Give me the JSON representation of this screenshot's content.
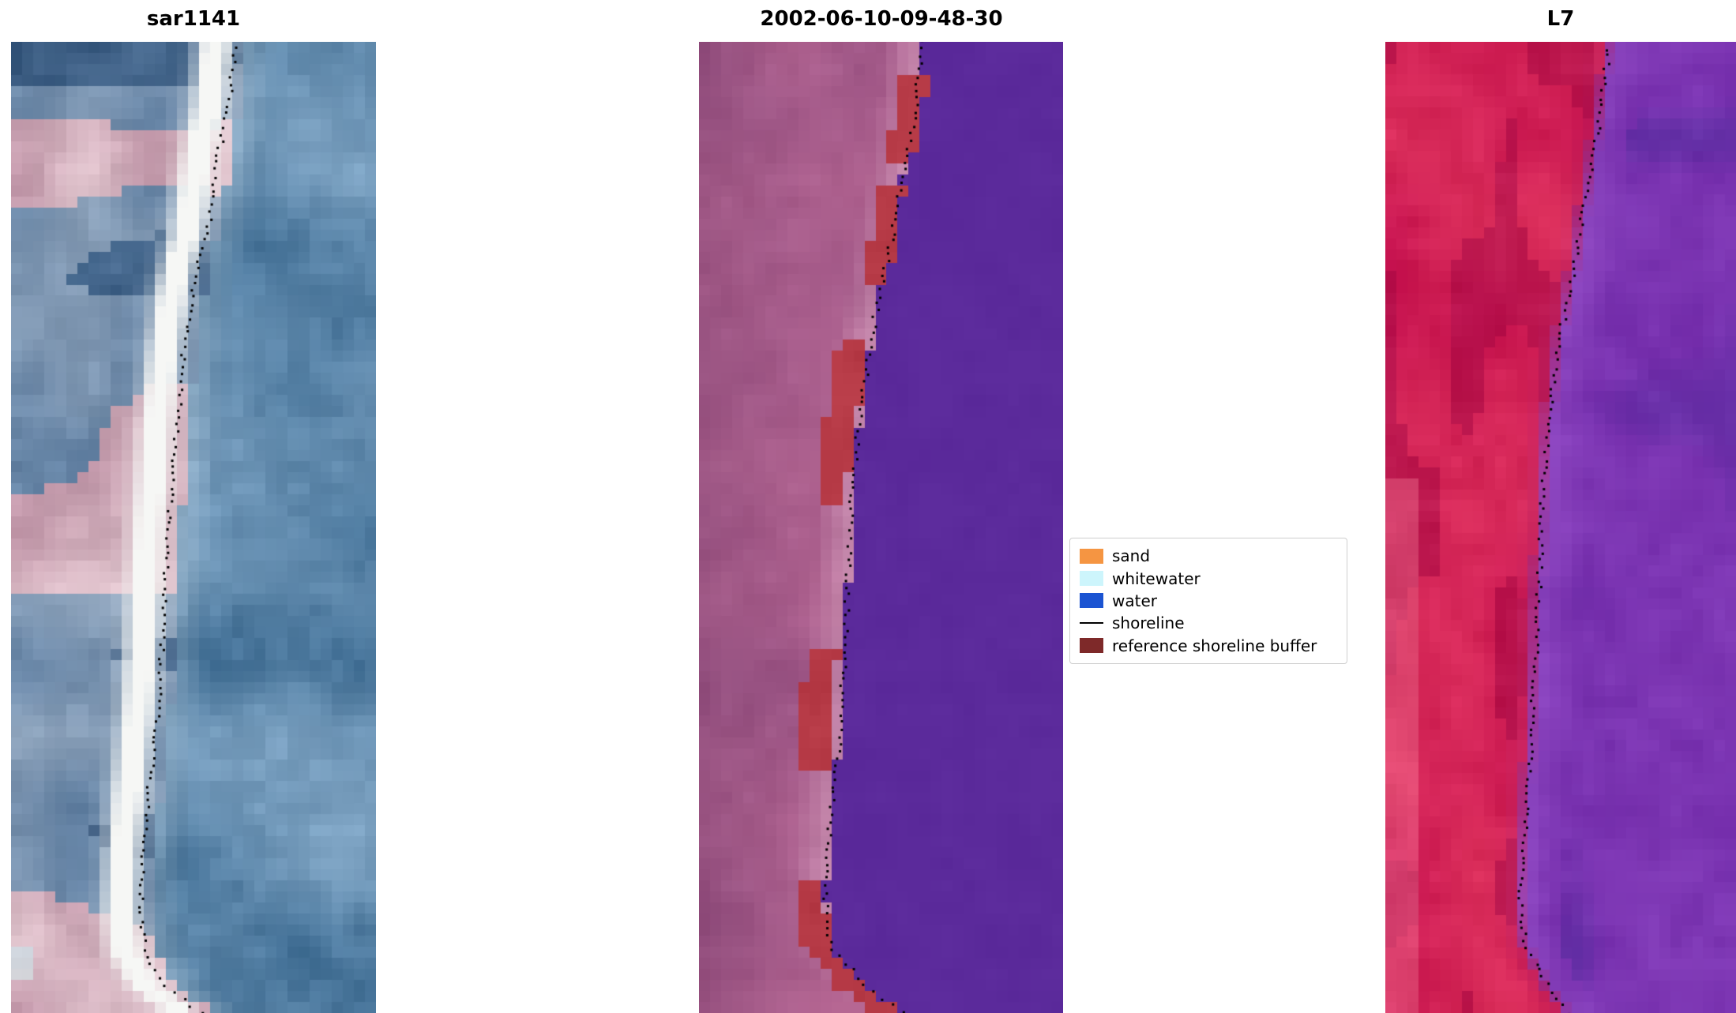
{
  "figure": {
    "background": "#ffffff"
  },
  "chart_data": {
    "type": "image-panels",
    "description": "Three-panel satellite shoreline-detection figure: a true-colour/SAR coastal image, a pixel classification for scene 2002-06-10-09-48-30, and a Landsat 7 false-colour image. Each panel is overlaid with a dotted black detected shoreline running top to bottom along the beach edge.",
    "panels": [
      {
        "title": "sar1141",
        "kind": "optical",
        "content": "True-colour coastal image: mottled blue, grey and pink land on the left, a bright white sand/whitewater band along the coast, textured blue ocean on the right, dotted black shoreline along the seaward edge of the beach.",
        "seed": 3,
        "cols": 33,
        "shoreline": [
          [
            0,
            0.615
          ],
          [
            0.06,
            0.6
          ],
          [
            0.12,
            0.565
          ],
          [
            0.18,
            0.545
          ],
          [
            0.25,
            0.5
          ],
          [
            0.33,
            0.47
          ],
          [
            0.4,
            0.455
          ],
          [
            0.48,
            0.435
          ],
          [
            0.55,
            0.425
          ],
          [
            0.62,
            0.415
          ],
          [
            0.7,
            0.4
          ],
          [
            0.78,
            0.375
          ],
          [
            0.85,
            0.36
          ],
          [
            0.9,
            0.355
          ],
          [
            0.94,
            0.37
          ],
          [
            0.97,
            0.42
          ],
          [
            1,
            0.52
          ]
        ],
        "palette": {
          "water_deep": "#39688f",
          "water_light": "#7aa0c0",
          "foam": "#f6f7f5",
          "land_colors": [
            "#2f4f74",
            "#4a6d93",
            "#5f7fa2",
            "#8ea3bb",
            "#bf93a6",
            "#e0c4cd",
            "#e6dedd",
            "#c8cfd8"
          ]
        }
      },
      {
        "title": "2002-06-10-09-48-30",
        "kind": "classification",
        "content": "Classified scene: uniform violet-purple water right of the shoreline, mauve-pink land on the left, dark red reference-shoreline-buffer patches hugging the coast, dotted black detected shoreline.",
        "seed": 11,
        "cols": 33,
        "shoreline": [
          [
            0,
            0.615
          ],
          [
            0.08,
            0.59
          ],
          [
            0.15,
            0.555
          ],
          [
            0.22,
            0.52
          ],
          [
            0.3,
            0.475
          ],
          [
            0.38,
            0.445
          ],
          [
            0.46,
            0.42
          ],
          [
            0.55,
            0.41
          ],
          [
            0.63,
            0.4
          ],
          [
            0.72,
            0.385
          ],
          [
            0.8,
            0.36
          ],
          [
            0.88,
            0.345
          ],
          [
            0.93,
            0.36
          ],
          [
            0.97,
            0.45
          ],
          [
            1,
            0.56
          ]
        ],
        "palette": {
          "water": "#5b2a9b",
          "land_dark": "#8e4b7e",
          "land_light": "#c4719b",
          "strip": "#d9a8c4",
          "edge_dark": "#7d3f6e",
          "buffer": "#b63a46",
          "buffer_bands": [
            {
              "t0": 0.03,
              "t1": 0.12,
              "d0": -0.05,
              "d1": 0.02
            },
            {
              "t0": 0.145,
              "t1": 0.25,
              "d0": -0.055,
              "d1": 0.015
            },
            {
              "t0": 0.31,
              "t1": 0.475,
              "d0": -0.095,
              "d1": -0.012
            },
            {
              "t0": 0.62,
              "t1": 0.75,
              "d0": -0.1,
              "d1": -0.018
            },
            {
              "t0": 0.865,
              "t1": 0.995,
              "d0": -0.085,
              "d1": -0.008
            }
          ]
        }
      },
      {
        "title": "L7",
        "kind": "false_color",
        "content": "Landsat 7 false-colour image: crimson-red land on the left with darker red patches, purple ocean on the right with darker blue-purple blotches, dotted black shoreline along the colour boundary.",
        "seed": 23,
        "cols": 32,
        "shoreline": [
          [
            0,
            0.64
          ],
          [
            0.07,
            0.615
          ],
          [
            0.14,
            0.58
          ],
          [
            0.22,
            0.545
          ],
          [
            0.3,
            0.5
          ],
          [
            0.38,
            0.47
          ],
          [
            0.46,
            0.45
          ],
          [
            0.55,
            0.44
          ],
          [
            0.63,
            0.43
          ],
          [
            0.72,
            0.415
          ],
          [
            0.8,
            0.4
          ],
          [
            0.88,
            0.385
          ],
          [
            0.93,
            0.4
          ],
          [
            0.97,
            0.46
          ],
          [
            1,
            0.52
          ]
        ],
        "palette": {
          "land_red": "#c40f4e",
          "land_red_light": "#e0355e",
          "land_red_dark": "#a50a45",
          "land_pink": "#ef6e8e",
          "boundary_magenta": "#b0246e",
          "sea_purple": "#6f28a8",
          "sea_purple_light": "#9b55cc",
          "sea_blue": "#4a2f9a"
        }
      }
    ],
    "legend": {
      "position": "center-right",
      "items": [
        {
          "label": "sand",
          "type": "patch",
          "color": "#f59542"
        },
        {
          "label": "whitewater",
          "type": "patch",
          "color": "#cdf5fc"
        },
        {
          "label": "water",
          "type": "patch",
          "color": "#1b54d2"
        },
        {
          "label": "shoreline",
          "type": "line",
          "color": "#000000"
        },
        {
          "label": "reference shoreline buffer",
          "type": "patch",
          "color": "#7e2929"
        }
      ]
    },
    "shoreline_dot_color": "#000000"
  }
}
